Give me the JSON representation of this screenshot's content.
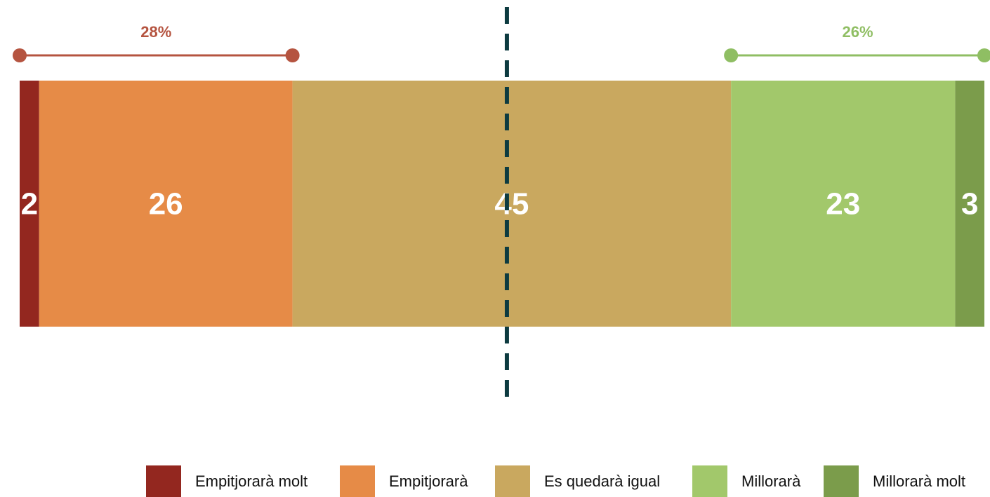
{
  "chart_data": {
    "type": "bar",
    "orientation": "horizontal-stacked",
    "categories": [
      "Empitjorarà molt",
      "Empitjorarà",
      "Es quedarà igual",
      "Millorarà",
      "Millorarà molt"
    ],
    "values": [
      2,
      26,
      45,
      23,
      3
    ],
    "value_labels": [
      "2",
      "26",
      "45",
      "23",
      "3"
    ],
    "colors": [
      "#93271f",
      "#e68b47",
      "#c9a85f",
      "#a2c86b",
      "#7b9c4b"
    ],
    "reference_line": {
      "value": 50,
      "style": "dashed",
      "color": "#0d3b40"
    },
    "brackets": [
      {
        "label": "28%",
        "from": 0,
        "to": 28,
        "color": "#b55440"
      },
      {
        "label": "26%",
        "from": 73,
        "to": 99,
        "color": "#8fbe63"
      }
    ],
    "legend": {
      "position": "bottom-right",
      "items": [
        "Empitjorarà molt",
        "Empitjorarà",
        "Es quedarà igual",
        "Millorarà",
        "Millorarà molt"
      ]
    },
    "title": "",
    "xlabel": "",
    "ylabel": ""
  }
}
